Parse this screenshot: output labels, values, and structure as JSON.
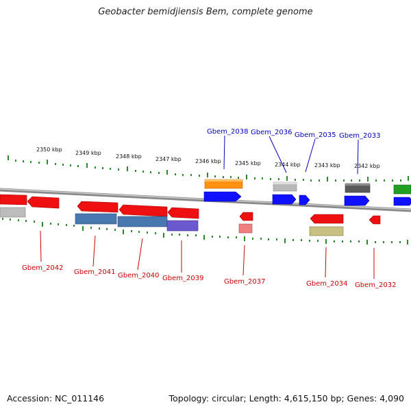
{
  "title": "Geobacter bemidjiensis Bem, complete genome",
  "footer": {
    "accession": "Accession: NC_011146",
    "summary": "Topology: circular; Length: 4,615,150 bp; Genes: 4,090"
  },
  "scale_labels": [
    "2350 kbp",
    "2349 kbp",
    "2348 kbp",
    "2347 kbp",
    "2346 kbp",
    "2345 kbp",
    "2344 kbp",
    "2343 kbp",
    "2342 kbp"
  ],
  "top_gene_labels": [
    "Gbem_2038",
    "Gbem_2036",
    "Gbem_2035",
    "Gbem_2033"
  ],
  "bottom_gene_labels": [
    "Gbem_2042",
    "Gbem_2041",
    "Gbem_2040",
    "Gbem_2039",
    "Gbem_2037",
    "Gbem_2034",
    "Gbem_2032"
  ],
  "colors": {
    "backbone": "#808080",
    "ticks": "#2a8a2a",
    "forward_label": "#0000bb",
    "reverse_label": "#cc0000"
  }
}
